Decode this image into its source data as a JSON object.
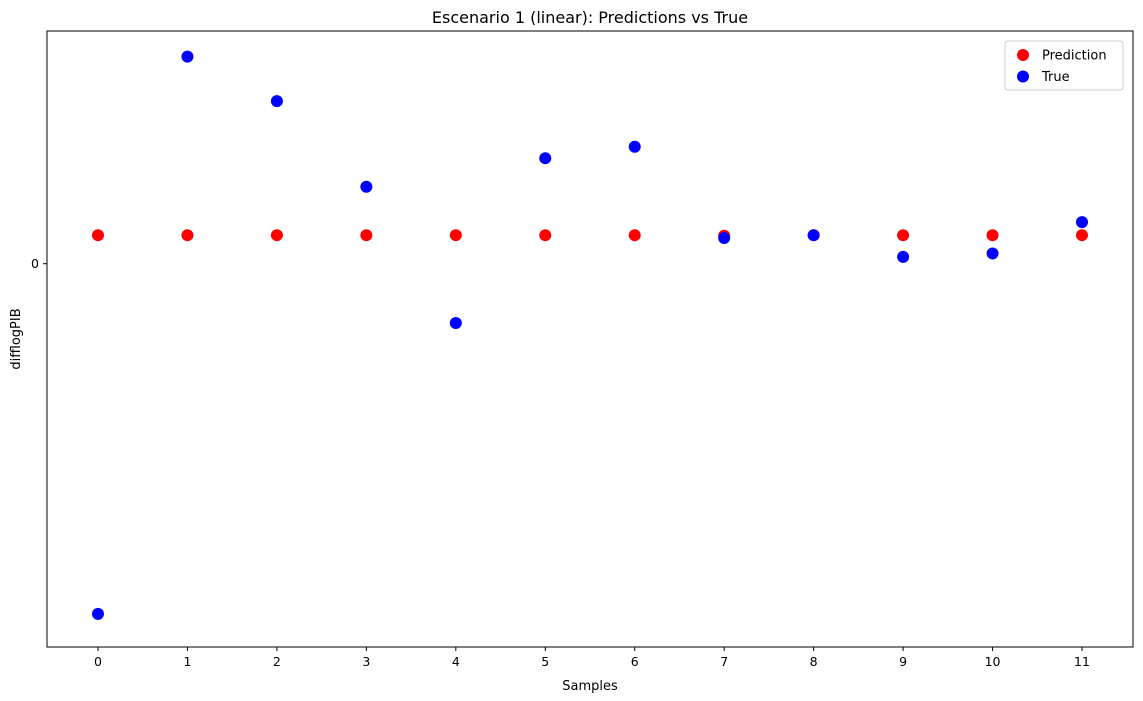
{
  "chart_data": {
    "type": "scatter",
    "title": "Escenario 1 (linear): Predictions vs True",
    "xlabel": "Samples",
    "ylabel": "difflogPIB",
    "x": [
      0,
      1,
      2,
      3,
      4,
      5,
      6,
      7,
      8,
      9,
      10,
      11
    ],
    "xticks": [
      "0",
      "1",
      "2",
      "3",
      "4",
      "5",
      "6",
      "7",
      "8",
      "9",
      "10",
      "11"
    ],
    "yticks": [
      {
        "value": 0,
        "label": "0"
      }
    ],
    "xlim": [
      -0.57,
      11.57
    ],
    "ylim": [
      -0.0672,
      0.0408
    ],
    "series": [
      {
        "name": "Prediction",
        "color": "#ff0000",
        "values": [
          0.005,
          0.005,
          0.005,
          0.005,
          0.005,
          0.005,
          0.005,
          0.0049,
          0.005,
          0.005,
          0.005,
          0.005
        ]
      },
      {
        "name": "True",
        "color": "#0000ff",
        "values": [
          -0.0614,
          0.0363,
          0.0285,
          0.0135,
          -0.0104,
          0.0185,
          0.0205,
          0.0045,
          0.005,
          0.0012,
          0.0018,
          0.0073
        ]
      }
    ],
    "legend_position": "top-right",
    "grid": false
  }
}
